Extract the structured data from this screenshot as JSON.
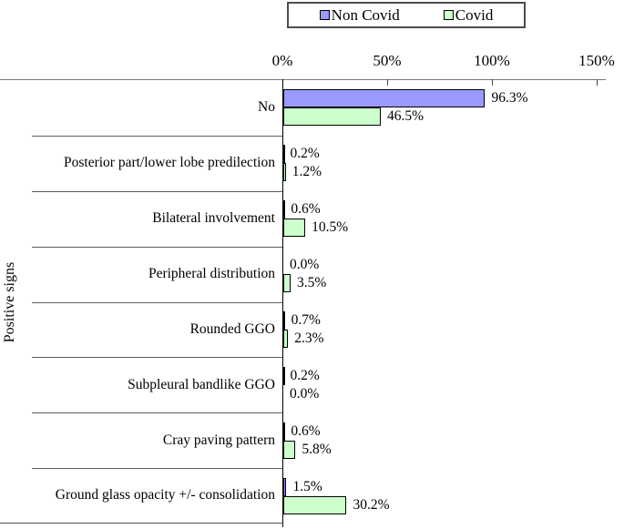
{
  "legend": {
    "items": [
      {
        "label": "Non Covid",
        "color": "#9999FF"
      },
      {
        "label": "Covid",
        "color": "#CCFFCC"
      }
    ]
  },
  "chart_data": {
    "type": "bar",
    "orientation": "horizontal",
    "title": "",
    "xlabel": "",
    "ylabel": "Positive signs",
    "xlim": [
      0,
      150
    ],
    "x_ticks": [
      "0%",
      "50%",
      "100%",
      "150%"
    ],
    "x_tick_values": [
      0,
      50,
      100,
      150
    ],
    "grid": false,
    "legend_position": "top-center",
    "value_labels_shown": true,
    "categories": [
      "No",
      "Posterior part/lower lobe predilection",
      "Bilateral involvement",
      "Peripheral distribution",
      "Rounded GGO",
      "Subpleural bandlike GGO",
      "Cray paving pattern",
      "Ground glass opacity +/- consolidation"
    ],
    "series": [
      {
        "name": "Non Covid",
        "color": "#9999FF",
        "border_color": "#000000",
        "values": [
          96.3,
          0.2,
          0.6,
          0.0,
          0.7,
          0.2,
          0.6,
          1.5
        ],
        "labels": [
          "96.3%",
          "0.2%",
          "0.6%",
          "0.0%",
          "0.7%",
          "0.2%",
          "0.6%",
          "1.5%"
        ]
      },
      {
        "name": "Covid",
        "color": "#CCFFCC",
        "border_color": "#000000",
        "values": [
          46.5,
          1.2,
          10.5,
          3.5,
          2.3,
          0.0,
          5.8,
          30.2
        ],
        "labels": [
          "46.5%",
          "1.2%",
          "10.5%",
          "3.5%",
          "2.3%",
          "0.0%",
          "5.8%",
          "30.2%"
        ]
      }
    ]
  }
}
